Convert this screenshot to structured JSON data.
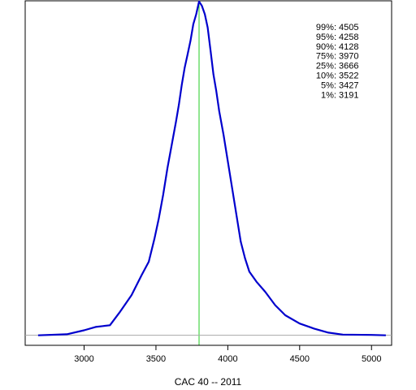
{
  "chart_data": {
    "type": "line",
    "title": "",
    "xlabel": "CAC 40 -- 2011",
    "ylabel": "",
    "xlim": [
      2590,
      5140
    ],
    "ylim": [
      -0.03,
      1.0
    ],
    "grid": false,
    "xticks": [
      3000,
      3500,
      4000,
      4500,
      5000
    ],
    "series": [
      {
        "color": "#0000CD",
        "x": [
          2680,
          2880,
          3000,
          3080,
          3180,
          3250,
          3330,
          3400,
          3450,
          3490,
          3520,
          3550,
          3580,
          3610,
          3640,
          3660,
          3680,
          3700,
          3720,
          3740,
          3760,
          3780,
          3800,
          3820,
          3840,
          3860,
          3880,
          3900,
          3920,
          3940,
          3970,
          4000,
          4030,
          4060,
          4090,
          4120,
          4150,
          4200,
          4260,
          4330,
          4400,
          4500,
          4600,
          4700,
          4800,
          5000,
          5100
        ],
        "y": [
          0.0,
          0.003,
          0.015,
          0.025,
          0.03,
          0.07,
          0.12,
          0.18,
          0.22,
          0.29,
          0.35,
          0.42,
          0.5,
          0.57,
          0.64,
          0.69,
          0.75,
          0.8,
          0.84,
          0.88,
          0.93,
          0.96,
          0.998,
          0.985,
          0.96,
          0.92,
          0.85,
          0.78,
          0.73,
          0.67,
          0.6,
          0.52,
          0.44,
          0.36,
          0.28,
          0.23,
          0.19,
          0.16,
          0.13,
          0.09,
          0.06,
          0.035,
          0.02,
          0.008,
          0.002,
          0.001,
          0.0
        ]
      }
    ],
    "reference_lines": [
      {
        "orientation": "vertical",
        "x": 3800,
        "color": "#22CC22"
      },
      {
        "orientation": "horizontal",
        "y": 0,
        "color": "#AAAAAA"
      }
    ],
    "quantiles": [
      {
        "label": "99%",
        "value": "4505"
      },
      {
        "label": "95%",
        "value": "4258"
      },
      {
        "label": "90%",
        "value": "4128"
      },
      {
        "label": "75%",
        "value": "3970"
      },
      {
        "label": "25%",
        "value": "3666"
      },
      {
        "label": "10%",
        "value": "3522"
      },
      {
        "label": "5%",
        "value": "3427"
      },
      {
        "label": "1%",
        "value": "3191"
      }
    ]
  }
}
